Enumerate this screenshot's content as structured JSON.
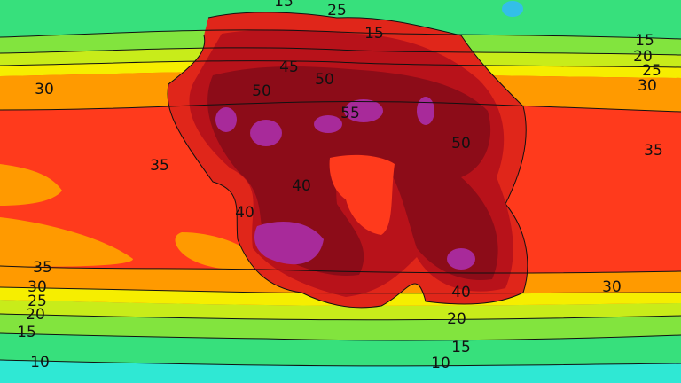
{
  "contour_labels": [
    "15",
    "25",
    "15",
    "15",
    "20",
    "25",
    "30",
    "30",
    "45",
    "50",
    "50",
    "55",
    "50",
    "35",
    "35",
    "40",
    "40",
    "35",
    "30",
    "25",
    "20",
    "15",
    "10",
    "10",
    "15",
    "20",
    "40",
    "30"
  ]
}
